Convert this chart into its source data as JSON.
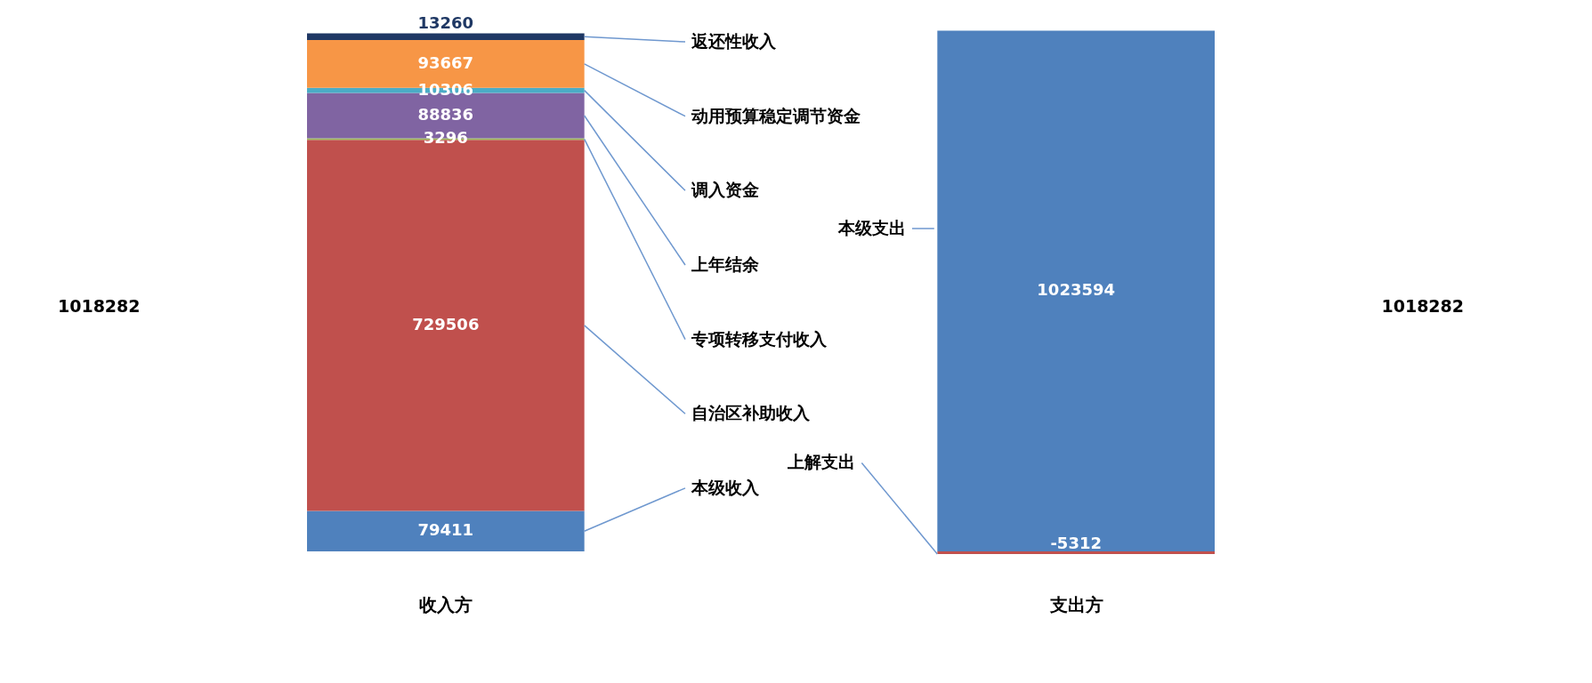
{
  "chart_data": {
    "type": "bar",
    "stacked": true,
    "categories": [
      "收入方",
      "支出方"
    ],
    "tick_labels": "x",
    "data_labels": true,
    "annotations": [
      "1018282",
      "1018282"
    ],
    "legend": false,
    "grid": false,
    "series": [
      {
        "name": "本级收入",
        "color": "#4f81bd",
        "values": [
          79411,
          null
        ]
      },
      {
        "name": "自治区补助收入",
        "color": "#c0504d",
        "values": [
          729506,
          null
        ]
      },
      {
        "name": "专项转移支付收入",
        "color": "#9bbb59",
        "values": [
          3296,
          null
        ]
      },
      {
        "name": "上年结余",
        "color": "#8064a2",
        "values": [
          88836,
          null
        ]
      },
      {
        "name": "调入资金",
        "color": "#4bacc6",
        "values": [
          10306,
          null
        ]
      },
      {
        "name": "动用预算稳定调节资金",
        "color": "#f79646",
        "values": [
          93667,
          null
        ]
      },
      {
        "name": "返还性收入",
        "color": "#1f3864",
        "values": [
          13260,
          null
        ]
      },
      {
        "name": "本级支出",
        "color": "#4f81bd",
        "values": [
          null,
          1023594
        ]
      },
      {
        "name": "上解支出",
        "color": "#c0504d",
        "values": [
          null,
          -5312
        ]
      }
    ]
  }
}
